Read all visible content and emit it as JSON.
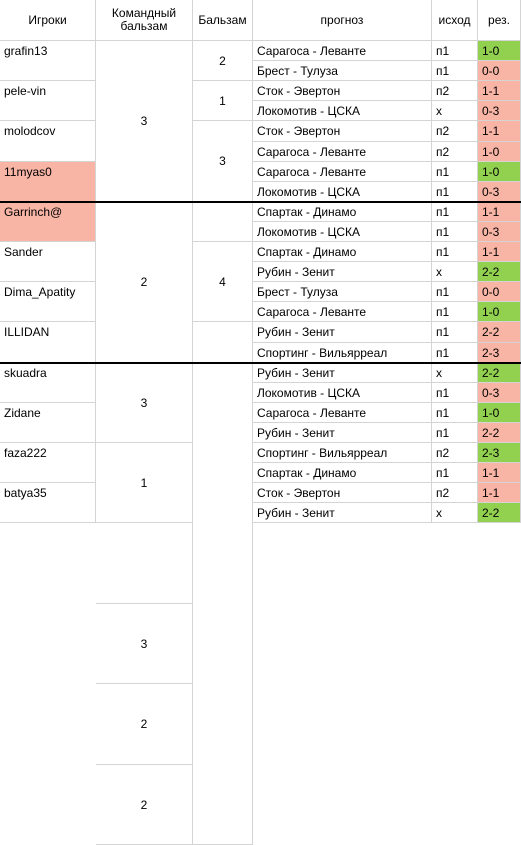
{
  "headers": {
    "players": "Игроки",
    "team_score": "Командный бальзам",
    "score": "Бальзам",
    "forecast": "прогноз",
    "outcome": "исход",
    "result": "рез."
  },
  "players": [
    {
      "name": "grafin13",
      "highlight": false
    },
    {
      "name": "pele-vin",
      "highlight": false
    },
    {
      "name": "molodcov",
      "highlight": false
    },
    {
      "name": "11myas0",
      "highlight": true
    },
    {
      "name": "Garrinch@",
      "highlight": true
    },
    {
      "name": "Sander",
      "highlight": false
    },
    {
      "name": "Dima_Apatity",
      "highlight": false
    },
    {
      "name": "ILLIDAN",
      "highlight": false
    },
    {
      "name": "skuadra",
      "highlight": false
    },
    {
      "name": "Zidane",
      "highlight": false
    },
    {
      "name": "faza222",
      "highlight": false
    },
    {
      "name": "batya35",
      "highlight": false
    }
  ],
  "team_scores": [
    "3",
    "2",
    "3",
    "1",
    "3",
    "2",
    "2"
  ],
  "scores": [
    "2",
    "1",
    "3",
    "4"
  ],
  "forecasts": [
    {
      "match": "Сарагоса - Леванте",
      "outcome": "п1",
      "result": "1-0",
      "status": "win"
    },
    {
      "match": "Брест - Тулуза",
      "outcome": "п1",
      "result": "0-0",
      "status": "lose"
    },
    {
      "match": "Сток - Эвертон",
      "outcome": "п2",
      "result": "1-1",
      "status": "lose"
    },
    {
      "match": "Локомотив - ЦСКА",
      "outcome": "х",
      "result": "0-3",
      "status": "lose"
    },
    {
      "match": "Сток - Эвертон",
      "outcome": "п2",
      "result": "1-1",
      "status": "lose"
    },
    {
      "match": "Сарагоса - Леванте",
      "outcome": "п2",
      "result": "1-0",
      "status": "lose"
    },
    {
      "match": "Сарагоса - Леванте",
      "outcome": "п1",
      "result": "1-0",
      "status": "win"
    },
    {
      "match": "Локомотив - ЦСКА",
      "outcome": "п1",
      "result": "0-3",
      "status": "lose"
    },
    {
      "match": "Спартак - Динамо",
      "outcome": "п1",
      "result": "1-1",
      "status": "lose"
    },
    {
      "match": "Локомотив - ЦСКА",
      "outcome": "п1",
      "result": "0-3",
      "status": "lose"
    },
    {
      "match": "Спартак - Динамо",
      "outcome": "п1",
      "result": "1-1",
      "status": "lose"
    },
    {
      "match": "Рубин - Зенит",
      "outcome": "х",
      "result": "2-2",
      "status": "win"
    },
    {
      "match": "Брест - Тулуза",
      "outcome": "п1",
      "result": "0-0",
      "status": "lose"
    },
    {
      "match": "Сарагоса - Леванте",
      "outcome": "п1",
      "result": "1-0",
      "status": "win"
    },
    {
      "match": "Рубин - Зенит",
      "outcome": "п1",
      "result": "2-2",
      "status": "lose"
    },
    {
      "match": "Спортинг - Вильярреал",
      "outcome": "п1",
      "result": "2-3",
      "status": "lose"
    },
    {
      "match": "Рубин - Зенит",
      "outcome": "х",
      "result": "2-2",
      "status": "win"
    },
    {
      "match": "Локомотив - ЦСКА",
      "outcome": "п1",
      "result": "0-3",
      "status": "lose"
    },
    {
      "match": "Сарагоса - Леванте",
      "outcome": "п1",
      "result": "1-0",
      "status": "win"
    },
    {
      "match": "Рубин - Зенит",
      "outcome": "п1",
      "result": "2-2",
      "status": "lose"
    },
    {
      "match": "Спортинг - Вильярреал",
      "outcome": "п2",
      "result": "2-3",
      "status": "win"
    },
    {
      "match": "Спартак - Динамо",
      "outcome": "п1",
      "result": "1-1",
      "status": "lose"
    },
    {
      "match": "Сток - Эвертон",
      "outcome": "п2",
      "result": "1-1",
      "status": "lose"
    },
    {
      "match": "Рубин - Зенит",
      "outcome": "х",
      "result": "2-2",
      "status": "win"
    }
  ],
  "colors": {
    "win": "#92d050",
    "lose": "#f8b4a5",
    "grid": "#d4d4d4",
    "thick": "#000000"
  }
}
